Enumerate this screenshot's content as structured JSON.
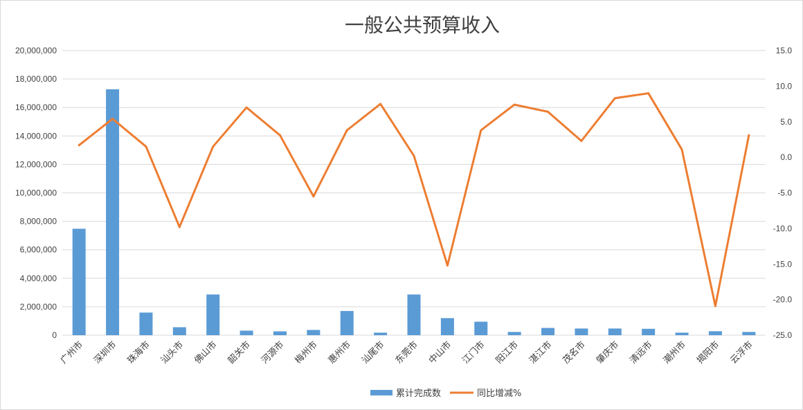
{
  "chart_data": {
    "type": "bar+line",
    "title": "一般公共预算收入",
    "categories": [
      "广州市",
      "深圳市",
      "珠海市",
      "汕头市",
      "佛山市",
      "韶关市",
      "河源市",
      "梅州市",
      "惠州市",
      "汕尾市",
      "东莞市",
      "中山市",
      "江门市",
      "阳江市",
      "湛江市",
      "茂名市",
      "肇庆市",
      "清远市",
      "潮州市",
      "揭阳市",
      "云浮市"
    ],
    "series": [
      {
        "name": "累计完成数",
        "type": "bar",
        "axis": "left",
        "color": "#5B9BD5",
        "values": [
          7480000,
          17280000,
          1590000,
          560000,
          2860000,
          320000,
          270000,
          370000,
          1700000,
          180000,
          2860000,
          1200000,
          950000,
          230000,
          510000,
          470000,
          470000,
          450000,
          180000,
          280000,
          230000
        ]
      },
      {
        "name": "同比增减%",
        "type": "line",
        "axis": "right",
        "color": "#ED7D31",
        "values": [
          1.7,
          5.4,
          1.5,
          -9.8,
          1.5,
          7.0,
          3.1,
          -5.5,
          3.8,
          7.5,
          0.2,
          -15.2,
          3.8,
          7.4,
          6.4,
          2.3,
          8.3,
          9.0,
          1.1,
          -20.9,
          3.1
        ]
      }
    ],
    "y_left": {
      "range": [
        0,
        20000000
      ],
      "ticks": [
        "0",
        "2,000,000",
        "4,000,000",
        "6,000,000",
        "8,000,000",
        "10,000,000",
        "12,000,000",
        "14,000,000",
        "16,000,000",
        "18,000,000",
        "20,000,000"
      ]
    },
    "y_right": {
      "range": [
        -25,
        15
      ],
      "ticks": [
        "-25.0",
        "-20.0",
        "-15.0",
        "-10.0",
        "-5.0",
        "0.0",
        "5.0",
        "10.0",
        "15.0"
      ]
    },
    "grid": true,
    "legend_position": "bottom"
  }
}
